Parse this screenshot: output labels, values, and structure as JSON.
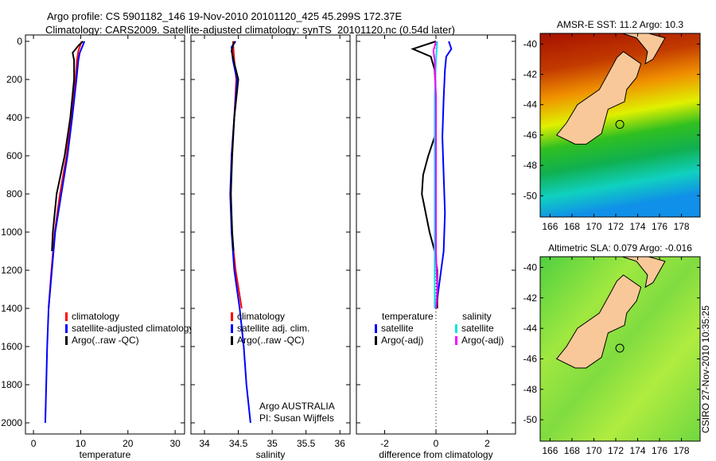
{
  "title_line1": "Argo profile: CS 5901182_146 19-Nov-2010 20101120_425 45.299S 172.37E",
  "title_line2": "Climatology: CARS2009. Satellite-adjusted climatology: synTS_20101120.nc (0.54d later)",
  "side_stamp": "CSIRO 27-Nov-2010 10:35:25",
  "chart_data": [
    {
      "type": "line",
      "xlabel": "temperature",
      "ylabel": "",
      "xlim": [
        -1.7,
        32
      ],
      "ylim": [
        2050,
        0
      ],
      "xticks": [
        0,
        10,
        20,
        30
      ],
      "yticks": [
        0,
        200,
        400,
        600,
        800,
        1000,
        1200,
        1400,
        1600,
        1800,
        2000
      ],
      "legend": [
        "climatology",
        "satellite-adjusted climatology",
        "Argo(..raw -QC)"
      ],
      "series": [
        {
          "name": "climatology",
          "color": "#ff0000",
          "depth": [
            0,
            50,
            100,
            200,
            400,
            600,
            800,
            1000,
            1200,
            1400
          ],
          "values": [
            10.2,
            9.5,
            9.2,
            8.9,
            8.0,
            7.0,
            5.6,
            4.5,
            3.8,
            3.2
          ]
        },
        {
          "name": "satellite-adjusted climatology",
          "color": "#0000ff",
          "depth": [
            0,
            30,
            60,
            100,
            200,
            400,
            600,
            800,
            1000,
            1200,
            1400,
            1600,
            1800,
            2000
          ],
          "values": [
            10.8,
            10.3,
            9.8,
            9.5,
            9.1,
            8.2,
            7.2,
            5.9,
            4.6,
            3.9,
            3.2,
            2.9,
            2.7,
            2.5
          ]
        },
        {
          "name": "Argo(..raw -QC)",
          "color": "#000000",
          "depth": [
            0,
            20,
            60,
            100,
            200,
            400,
            600,
            800,
            1000,
            1100
          ],
          "values": [
            10.5,
            9.6,
            8.3,
            8.6,
            8.6,
            7.8,
            6.6,
            4.9,
            4.1,
            3.9
          ]
        }
      ],
      "annotations": []
    },
    {
      "type": "line",
      "xlabel": "salinity",
      "xlim": [
        33.8,
        36.15
      ],
      "ylim": [
        2050,
        0
      ],
      "xticks": [
        34,
        34.5,
        35,
        35.5,
        36
      ],
      "legend": [
        "climatology",
        "satellite adj. clim.",
        "Argo(..raw -QC)"
      ],
      "series": [
        {
          "name": "climatology",
          "color": "#ff0000",
          "depth": [
            0,
            100,
            200,
            400,
            600,
            800,
            1000,
            1200,
            1400
          ],
          "values": [
            34.42,
            34.44,
            34.47,
            34.44,
            34.4,
            34.39,
            34.4,
            34.46,
            34.55
          ]
        },
        {
          "name": "satellite adj. clim.",
          "color": "#0000ff",
          "depth": [
            0,
            30,
            100,
            200,
            400,
            600,
            800,
            1000,
            1200,
            1400,
            1600,
            1800,
            2000
          ],
          "values": [
            34.46,
            34.4,
            34.42,
            34.48,
            34.44,
            34.4,
            34.38,
            34.4,
            34.44,
            34.52,
            34.58,
            34.62,
            34.68
          ]
        },
        {
          "name": "Argo(..raw -QC)",
          "color": "#000000",
          "depth": [
            0,
            50,
            100,
            200,
            400,
            600,
            800,
            1000,
            1100
          ],
          "values": [
            34.44,
            34.4,
            34.43,
            34.5,
            34.44,
            34.41,
            34.39,
            34.41,
            34.43
          ]
        }
      ],
      "annotations": [
        "Argo AUSTRALIA",
        "PI: Susan Wijffels"
      ]
    },
    {
      "type": "line",
      "xlabel": "difference from climatology",
      "xlim": [
        -3.1,
        3.1
      ],
      "ylim": [
        2050,
        0
      ],
      "xticks": [
        -2,
        0,
        2
      ],
      "legend_header": [
        "temperature",
        "salinity"
      ],
      "legend": [
        "satellite",
        "Argo(-adj)",
        "satellite",
        "Argo(-adj)"
      ],
      "series": [
        {
          "name": "temperature satellite",
          "color": "#0000ff",
          "depth": [
            0,
            40,
            80,
            150,
            300,
            500,
            700,
            900,
            1100,
            1300,
            1400
          ],
          "values": [
            0.5,
            0.6,
            0.4,
            0.35,
            0.3,
            0.25,
            0.3,
            0.35,
            0.3,
            0.1,
            0.0
          ]
        },
        {
          "name": "temperature Argo(-adj)",
          "color": "#000000",
          "depth": [
            0,
            40,
            80,
            150,
            300,
            500,
            600,
            700,
            800,
            900,
            1000,
            1100,
            1200,
            1400
          ],
          "values": [
            0.0,
            -0.9,
            -0.2,
            -0.05,
            0.0,
            -0.05,
            -0.3,
            -0.5,
            -0.55,
            -0.4,
            -0.25,
            -0.05,
            0.05,
            0.05
          ]
        },
        {
          "name": "salinity satellite",
          "color": "#00e5e5",
          "depth": [
            0,
            100,
            300,
            500,
            700,
            900,
            1100,
            1300,
            1400
          ],
          "values": [
            0.05,
            0.0,
            -0.05,
            -0.05,
            -0.05,
            -0.05,
            -0.05,
            -0.05,
            -0.05
          ]
        },
        {
          "name": "salinity Argo(-adj)",
          "color": "#ff00ff",
          "depth": [
            0,
            50,
            100,
            300,
            500,
            700,
            900,
            1100,
            1300,
            1400
          ],
          "values": [
            0.0,
            -0.1,
            -0.05,
            0.0,
            0.0,
            0.0,
            0.0,
            0.0,
            0.05,
            0.0
          ]
        }
      ]
    }
  ],
  "maps": [
    {
      "title": "AMSR-E SST: 11.2 Argo: 10.3",
      "lat_ticks": [
        -40,
        -42,
        -44,
        -46,
        -48,
        -50
      ],
      "lon_ticks": [
        166,
        168,
        170,
        172,
        174,
        176,
        178
      ],
      "latlim": [
        -51.4,
        -39.3
      ],
      "lonlim": [
        165.1,
        179.7
      ],
      "argo_position": [
        172.37,
        -45.299
      ]
    },
    {
      "title": "Altimetric SLA: 0.079 Argo: -0.016",
      "lat_ticks": [
        -40,
        -42,
        -44,
        -46,
        -48,
        -50
      ],
      "lon_ticks": [
        166,
        168,
        170,
        172,
        174,
        176,
        178
      ],
      "latlim": [
        -51.4,
        -39.3
      ],
      "lonlim": [
        165.1,
        179.7
      ],
      "argo_position": [
        172.37,
        -45.299
      ]
    }
  ]
}
